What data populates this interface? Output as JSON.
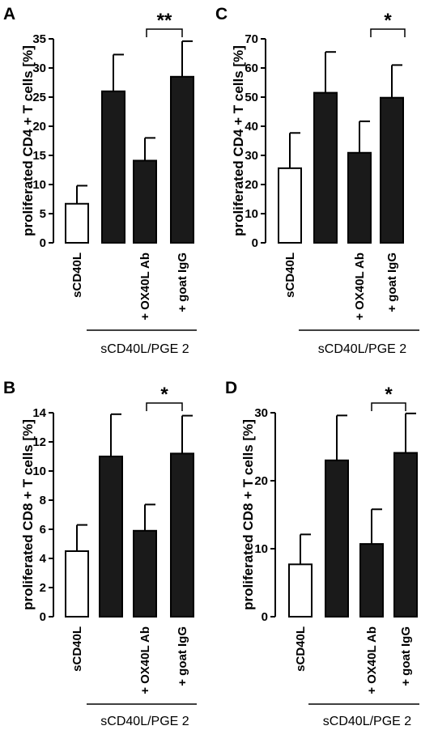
{
  "chart_data": [
    {
      "panel": "A",
      "type": "bar",
      "ylabel": "proliferated CD4 + T cells [%]",
      "ylim": [
        0,
        35
      ],
      "yticks": [
        0,
        5,
        10,
        15,
        20,
        25,
        30,
        35
      ],
      "categories": [
        "sCD40L",
        "",
        "+ OX40L Ab",
        "+ goat IgG"
      ],
      "values": [
        6.7,
        26.0,
        14.1,
        28.5
      ],
      "errors": [
        3.1,
        6.3,
        3.9,
        6.1
      ],
      "bar_colors": [
        "#ffffff",
        "#1a1a1a",
        "#1a1a1a",
        "#1a1a1a"
      ],
      "group_label": "sCD40L/PGE 2",
      "significance": "**"
    },
    {
      "panel": "C",
      "type": "bar",
      "ylabel": "proliferated CD4 + T cells [%]",
      "ylim": [
        0,
        70
      ],
      "yticks": [
        0,
        10,
        20,
        30,
        40,
        50,
        60,
        70
      ],
      "categories": [
        "sCD40L",
        "",
        "+ OX40L Ab",
        "+ goat IgG"
      ],
      "values": [
        25.6,
        51.5,
        30.9,
        49.8
      ],
      "errors": [
        12.1,
        14.0,
        10.8,
        11.2
      ],
      "bar_colors": [
        "#ffffff",
        "#1a1a1a",
        "#1a1a1a",
        "#1a1a1a"
      ],
      "group_label": "sCD40L/PGE 2",
      "significance": "*"
    },
    {
      "panel": "B",
      "type": "bar",
      "ylabel": "proliferated CD8 + T cells [%]",
      "ylim": [
        0,
        14
      ],
      "yticks": [
        0,
        2,
        4,
        6,
        8,
        10,
        12,
        14
      ],
      "categories": [
        "sCD40L",
        "",
        "+ OX40L Ab",
        "+ goat IgG"
      ],
      "values": [
        4.5,
        11.0,
        5.9,
        11.2
      ],
      "errors": [
        1.8,
        2.9,
        1.8,
        2.6
      ],
      "bar_colors": [
        "#ffffff",
        "#1a1a1a",
        "#1a1a1a",
        "#1a1a1a"
      ],
      "group_label": "sCD40L/PGE 2",
      "significance": "*"
    },
    {
      "panel": "D",
      "type": "bar",
      "ylabel": "proliferated CD8 + T cells [%]",
      "ylim": [
        0,
        30
      ],
      "yticks": [
        0,
        10,
        20,
        30
      ],
      "categories": [
        "sCD40L",
        "",
        "+ OX40L Ab",
        "+ goat IgG"
      ],
      "values": [
        7.7,
        23.0,
        10.7,
        24.1
      ],
      "errors": [
        4.4,
        6.6,
        5.1,
        5.8
      ],
      "bar_colors": [
        "#ffffff",
        "#1a1a1a",
        "#1a1a1a",
        "#1a1a1a"
      ],
      "group_label": "sCD40L/PGE 2",
      "significance": "*"
    }
  ]
}
